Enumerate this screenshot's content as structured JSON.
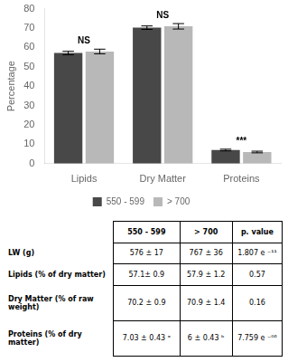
{
  "chart_data": {
    "type": "bar",
    "categories": [
      "Lipids",
      "Dry Matter",
      "Proteins"
    ],
    "series": [
      {
        "name": "550 - 599",
        "color": "#484848",
        "values": [
          57.1,
          70.2,
          7.03
        ],
        "errors": [
          0.9,
          0.9,
          0.43
        ]
      },
      {
        "name": "> 700",
        "color": "#b8b8b8",
        "values": [
          57.9,
          70.9,
          6.0
        ],
        "errors": [
          1.2,
          1.4,
          0.43
        ]
      }
    ],
    "ylabel": "Percentage",
    "ylim": [
      0,
      80
    ],
    "yticks": [
      0,
      10,
      20,
      30,
      40,
      50,
      60,
      70,
      80
    ],
    "grid": false,
    "legend": "bottom",
    "annotations": [
      {
        "category": "Lipids",
        "text": "NS"
      },
      {
        "category": "Dry Matter",
        "text": "NS"
      },
      {
        "category": "Proteins",
        "text": "***"
      }
    ],
    "table": {
      "headers": [
        "550 - 599",
        "> 700",
        "p. value"
      ],
      "rows": [
        [
          "LW  (g)",
          "576 ± 17",
          "767 ± 36",
          "1.807 e ⁻¹¹"
        ],
        [
          "Lipids (% of dry matter)",
          "57.1± 0.9",
          "57.9 ± 1.2",
          "0.57"
        ],
        [
          "Dry Matter (% of raw weight)",
          "70.2 ± 0.9",
          "70.9 ± 1.4",
          "0.16"
        ],
        [
          "Proteins (% of dry matter)",
          "7.03 ± 0.43 ᵃ",
          "6 ± 0.43 ᵇ",
          "7.759 e ⁻⁰⁶"
        ]
      ]
    }
  }
}
